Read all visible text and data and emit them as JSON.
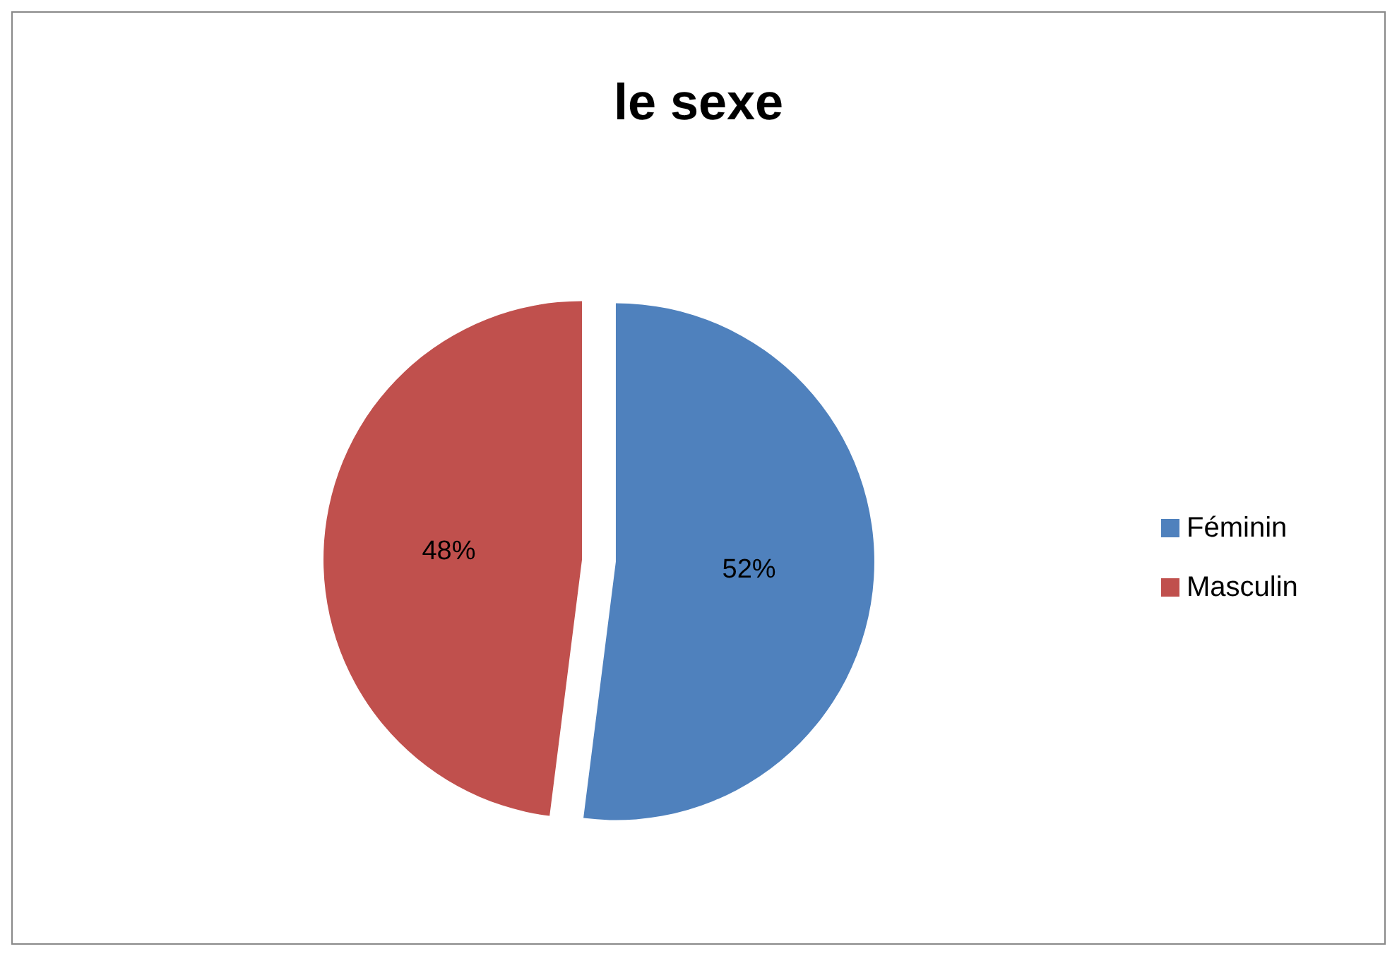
{
  "chart_data": {
    "type": "pie",
    "title": "le sexe",
    "categories": [
      "Féminin",
      "Masculin"
    ],
    "values": [
      52,
      48
    ],
    "colors": [
      "#4f81bd",
      "#c0504d"
    ],
    "value_labels": [
      "52%",
      "48%"
    ],
    "legend": "right"
  }
}
